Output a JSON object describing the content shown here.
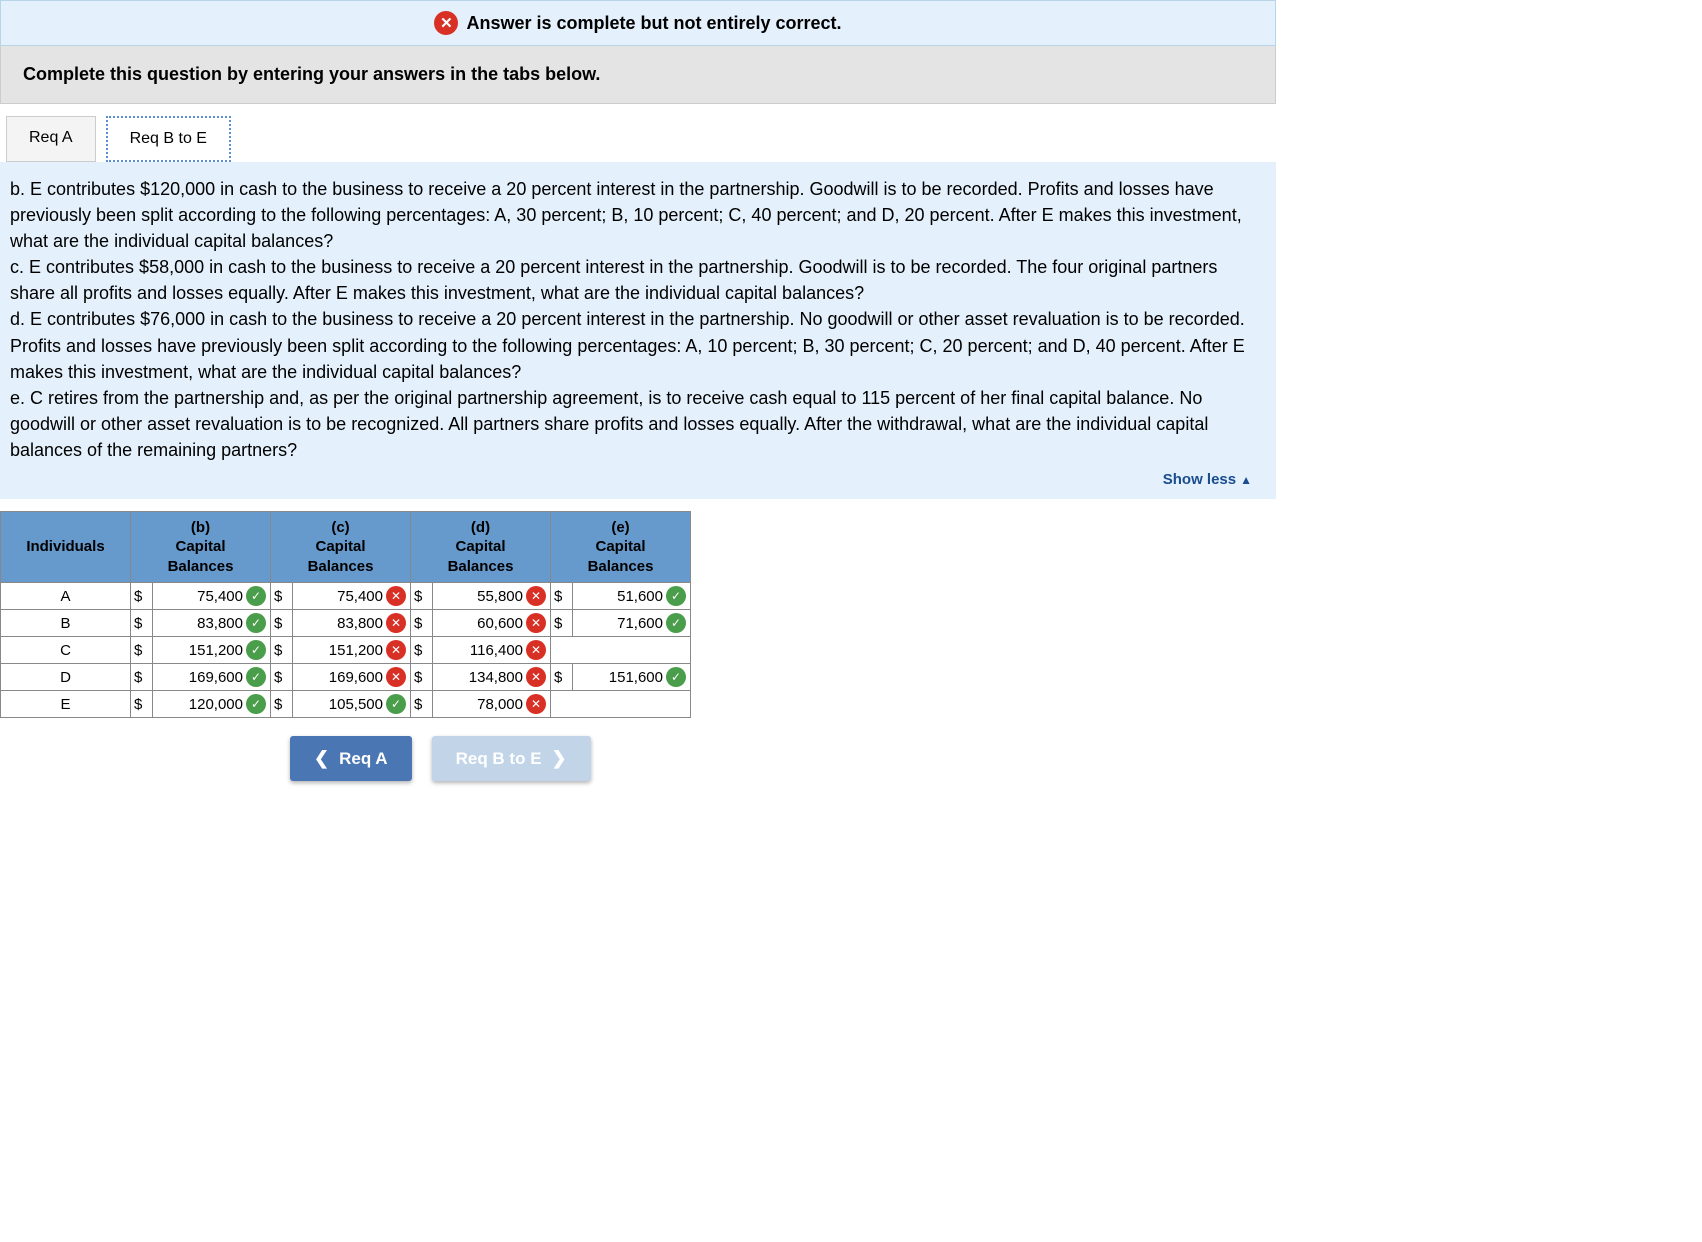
{
  "colors": {
    "banner_bg": "#e4f0fb",
    "banner_border": "#b8d4e8",
    "error_red": "#d93025",
    "instruction_bg": "#e4e4e4",
    "tab_inactive_bg": "#f4f4f4",
    "tab_active_border": "#5a8fd6",
    "question_bg": "#e4f0fb",
    "link_blue": "#1a4d8f",
    "table_header_bg": "#6699cc",
    "table_border": "#888888",
    "ok_green": "#4a9d4a",
    "nav_prev_bg": "#4a77b4",
    "nav_next_bg": "#c1d4e8"
  },
  "banner": {
    "text": "Answer is complete but not entirely correct."
  },
  "instruction": "Complete this question by entering your answers in the tabs below.",
  "tabs": [
    {
      "label": "Req A",
      "active": false
    },
    {
      "label": "Req B to E",
      "active": true
    }
  ],
  "question_text": "b. E contributes $120,000 in cash to the business to receive a 20 percent interest in the partnership. Goodwill is to be recorded. Profits and losses have previously been split according to the following percentages: A, 30 percent; B, 10 percent; C, 40 percent; and D, 20 percent. After E makes this investment, what are the individual capital balances?\nc. E contributes $58,000 in cash to the business to receive a 20 percent interest in the partnership. Goodwill is to be recorded. The four original partners share all profits and losses equally. After E makes this investment, what are the individual capital balances?\nd. E contributes $76,000 in cash to the business to receive a 20 percent interest in the partnership. No goodwill or other asset revaluation is to be recorded. Profits and losses have previously been split according to the following percentages: A, 10 percent; B, 30 percent; C, 20 percent; and D, 40 percent. After E makes this investment, what are the individual capital balances?\ne. C retires from the partnership and, as per the original partnership agreement, is to receive cash equal to 115 percent of her final capital balance. No goodwill or other asset revaluation is to be recognized. All partners share profits and losses equally. After the withdrawal, what are the individual capital balances of the remaining partners?",
  "show_less": "Show less",
  "table": {
    "headers": [
      "Individuals",
      "(b)\nCapital Balances",
      "(c)\nCapital Balances",
      "(d)\nCapital Balances",
      "(e)\nCapital Balances"
    ],
    "col_width_first": 130,
    "col_width_data": 140,
    "rows": [
      {
        "id": "A",
        "cells": [
          {
            "value": "75,400",
            "status": "ok"
          },
          {
            "value": "75,400",
            "status": "bad"
          },
          {
            "value": "55,800",
            "status": "bad"
          },
          {
            "value": "51,600",
            "status": "ok"
          }
        ]
      },
      {
        "id": "B",
        "cells": [
          {
            "value": "83,800",
            "status": "ok"
          },
          {
            "value": "83,800",
            "status": "bad"
          },
          {
            "value": "60,600",
            "status": "bad"
          },
          {
            "value": "71,600",
            "status": "ok"
          }
        ]
      },
      {
        "id": "C",
        "cells": [
          {
            "value": "151,200",
            "status": "ok"
          },
          {
            "value": "151,200",
            "status": "bad"
          },
          {
            "value": "116,400",
            "status": "bad"
          },
          {
            "value": "",
            "status": ""
          }
        ]
      },
      {
        "id": "D",
        "cells": [
          {
            "value": "169,600",
            "status": "ok"
          },
          {
            "value": "169,600",
            "status": "bad"
          },
          {
            "value": "134,800",
            "status": "bad"
          },
          {
            "value": "151,600",
            "status": "ok"
          }
        ]
      },
      {
        "id": "E",
        "cells": [
          {
            "value": "120,000",
            "status": "ok"
          },
          {
            "value": "105,500",
            "status": "ok"
          },
          {
            "value": "78,000",
            "status": "bad"
          },
          {
            "value": "",
            "status": ""
          }
        ]
      }
    ]
  },
  "nav": {
    "prev": "Req A",
    "next": "Req B to E"
  }
}
